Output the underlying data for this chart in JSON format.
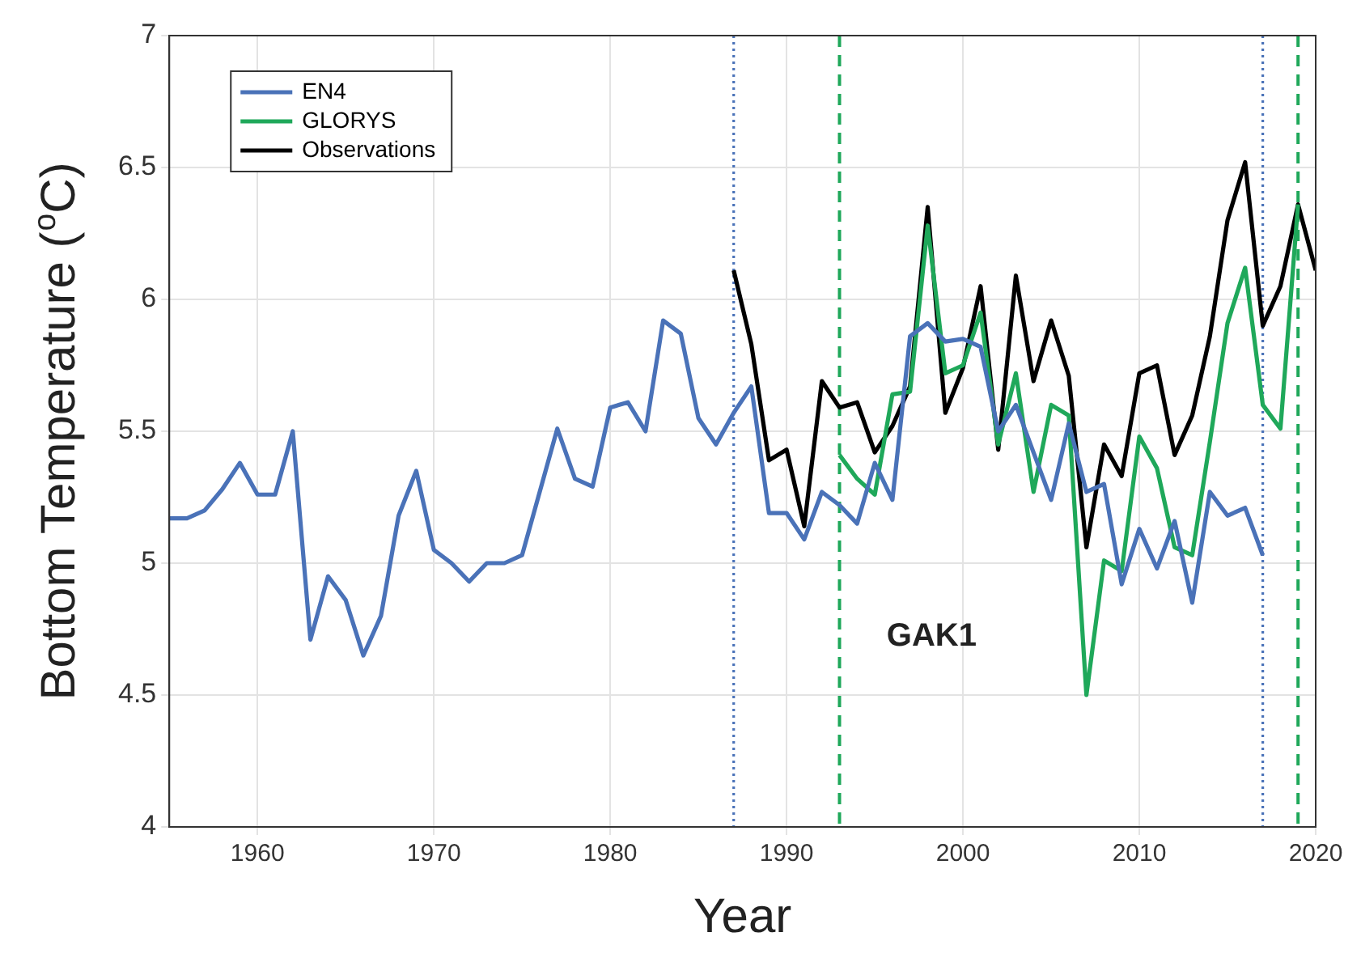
{
  "chart_data": {
    "type": "line",
    "xlabel": "Year",
    "ylabel": "Bottom Temperature ($^{o}$C)",
    "xlim": [
      1955,
      2020
    ],
    "xticks": [
      1960,
      1970,
      1980,
      1990,
      2000,
      2010,
      2020
    ],
    "ylim": [
      4,
      7
    ],
    "yticks": [
      4,
      4.5,
      5,
      5.5,
      6,
      6.5,
      7
    ],
    "grid": true,
    "legend": "top left",
    "line_style": "solid",
    "marker": "none",
    "series": [
      {
        "name": "EN4",
        "color": "#4a72b8",
        "x": [
          1955,
          1956,
          1957,
          1958,
          1959,
          1960,
          1961,
          1962,
          1963,
          1964,
          1965,
          1966,
          1967,
          1968,
          1969,
          1970,
          1971,
          1972,
          1973,
          1974,
          1975,
          1976,
          1977,
          1978,
          1979,
          1980,
          1981,
          1982,
          1983,
          1984,
          1985,
          1986,
          1987,
          1988,
          1989,
          1990,
          1991,
          1992,
          1993,
          1994,
          1995,
          1996,
          1997,
          1998,
          1999,
          2000,
          2001,
          2002,
          2003,
          2004,
          2005,
          2006,
          2007,
          2008,
          2009,
          2010,
          2011,
          2012,
          2013,
          2014,
          2015,
          2016,
          2017
        ],
        "values": [
          5.17,
          5.17,
          5.2,
          5.28,
          5.38,
          5.26,
          5.26,
          5.5,
          4.71,
          4.95,
          4.86,
          4.65,
          4.8,
          5.18,
          5.35,
          5.05,
          5.0,
          4.93,
          5.0,
          5.0,
          5.03,
          5.27,
          5.51,
          5.32,
          5.29,
          5.59,
          5.61,
          5.5,
          5.92,
          5.87,
          5.55,
          5.45,
          5.57,
          5.67,
          5.19,
          5.19,
          5.09,
          5.27,
          5.22,
          5.15,
          5.38,
          5.24,
          5.86,
          5.91,
          5.84,
          5.85,
          5.82,
          5.5,
          5.6,
          5.42,
          5.24,
          5.53,
          5.27,
          5.3,
          4.92,
          5.13,
          4.98,
          5.16,
          4.85,
          5.27,
          5.18,
          5.21,
          5.03
        ]
      },
      {
        "name": "GLORYS",
        "color": "#1fa85a",
        "x": [
          1993,
          1994,
          1995,
          1996,
          1997,
          1998,
          1999,
          2000,
          2001,
          2002,
          2003,
          2004,
          2005,
          2006,
          2007,
          2008,
          2009,
          2010,
          2011,
          2012,
          2013,
          2014,
          2015,
          2016,
          2017,
          2018,
          2019
        ],
        "values": [
          5.41,
          5.32,
          5.26,
          5.64,
          5.65,
          6.28,
          5.72,
          5.75,
          5.95,
          5.45,
          5.72,
          5.27,
          5.6,
          5.56,
          4.5,
          5.01,
          4.97,
          5.48,
          5.36,
          5.06,
          5.03,
          5.46,
          5.91,
          6.12,
          5.6,
          5.51,
          6.36
        ]
      },
      {
        "name": "Observations",
        "color": "#000000",
        "x": [
          1987,
          1988,
          1989,
          1990,
          1991,
          1992,
          1993,
          1994,
          1995,
          1996,
          1997,
          1998,
          1999,
          2000,
          2001,
          2002,
          2003,
          2004,
          2005,
          2006,
          2007,
          2008,
          2009,
          2010,
          2011,
          2012,
          2013,
          2014,
          2015,
          2016,
          2017,
          2018,
          2019,
          2020
        ],
        "values": [
          6.11,
          5.83,
          5.39,
          5.43,
          5.14,
          5.69,
          5.59,
          5.61,
          5.42,
          5.52,
          5.67,
          6.35,
          5.57,
          5.74,
          6.05,
          5.43,
          6.09,
          5.69,
          5.92,
          5.71,
          5.06,
          5.45,
          5.33,
          5.72,
          5.75,
          5.41,
          5.56,
          5.86,
          6.3,
          6.52,
          5.9,
          6.05,
          6.36,
          6.11
        ]
      }
    ],
    "ref_lines": [
      {
        "axis": "x",
        "value": 1987,
        "color": "#4a72b8",
        "line_style": "dotted"
      },
      {
        "axis": "x",
        "value": 1993,
        "color": "#1fa85a",
        "line_style": "dashed"
      },
      {
        "axis": "x",
        "value": 2017,
        "color": "#4a72b8",
        "line_style": "dotted"
      },
      {
        "axis": "x",
        "value": 2019,
        "color": "#1fa85a",
        "line_style": "dashed"
      }
    ],
    "annotations": [
      "GAK1"
    ]
  }
}
